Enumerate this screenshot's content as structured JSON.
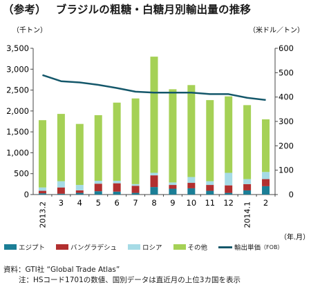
{
  "title": {
    "prefix": "（参考）",
    "main": "ブラジルの粗糖・白糖月別輸出量の推移"
  },
  "units": {
    "left": "（千トン）",
    "right": "（米ドル／トン）",
    "x": "（年.月）"
  },
  "legend": {
    "egypt": "エジプト",
    "bangladesh": "バングラデシュ",
    "russia": "ロシア",
    "other": "その他",
    "price": "輸出単価",
    "price_note": "（FOB）"
  },
  "notes": {
    "source": "資料：GTI社 “Global Trade Atlas”",
    "note": "注：HSコード1701の数値、国別データは直近月の上位3カ国を表示"
  },
  "colors": {
    "egypt": "#1b7e96",
    "bangladesh": "#b22f2f",
    "russia": "#a6dbe6",
    "other": "#a5d156",
    "price": "#14576a"
  },
  "chart_data": {
    "type": "bar",
    "stacked": true,
    "categories": [
      "2013.2",
      "3",
      "4",
      "5",
      "6",
      "7",
      "8",
      "9",
      "10",
      "11",
      "12",
      "2014.1",
      "2"
    ],
    "series": [
      {
        "name": "エジプト",
        "values": [
          30,
          20,
          40,
          80,
          70,
          40,
          180,
          140,
          150,
          90,
          40,
          100,
          200
        ]
      },
      {
        "name": "バングラデシュ",
        "values": [
          60,
          150,
          60,
          180,
          200,
          170,
          280,
          90,
          130,
          140,
          180,
          150,
          170
        ]
      },
      {
        "name": "ロシア",
        "values": [
          80,
          150,
          130,
          70,
          60,
          40,
          60,
          60,
          140,
          90,
          300,
          120,
          170
        ]
      },
      {
        "name": "その他",
        "values": [
          1610,
          1610,
          1460,
          1570,
          1870,
          2050,
          2780,
          2230,
          2200,
          1940,
          1830,
          1770,
          1260
        ]
      }
    ],
    "line_series": {
      "name": "輸出単価",
      "values": [
        490,
        465,
        460,
        450,
        437,
        422,
        418,
        418,
        418,
        412,
        412,
        397,
        388
      ]
    },
    "y_left": {
      "min": 0,
      "max": 3500,
      "ticks": [
        "0",
        "500",
        "1,000",
        "1,500",
        "2,000",
        "2,500",
        "3,000",
        "3,500"
      ]
    },
    "y_right": {
      "min": 0,
      "max": 600,
      "ticks": [
        "0",
        "100",
        "200",
        "300",
        "400",
        "500",
        "600"
      ]
    },
    "grid": false,
    "legend_position": "bottom"
  }
}
